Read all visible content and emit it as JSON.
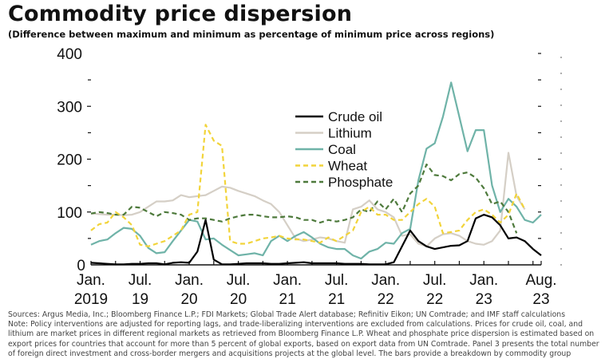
{
  "title": "Commodity price dispersion",
  "subtitle": "(Difference between maximum and minimum as percentage of minimum price across regions)",
  "notes": {
    "sources": "Sources: Argus Media, Inc.; Bloomberg Finance L.P.; FDI Markets; Global Trade Alert database; Refinitiv Eikon; UN Comtrade; and IMF staff calculations",
    "note_lines": [
      "Note: Policy interventions are adjusted for reporting lags, and trade-liberalizing interventions are excluded from calculations. Prices for crude oil, coal, and",
      "lithium are market prices in different regional markets as retrieved from Bloomberg Finance L.P. Wheat and phosphate price dispersion is estimated based on",
      "export prices for countries that account for more than 5 percent of global exports, based on export data from UN Comtrade. Panel 3 presents the total number",
      "of foreign direct investment and cross-border mergers and acquisitions projects at the global level. The bars provide a breakdown by commodity group"
    ]
  },
  "chart_data": {
    "type": "line",
    "x_start": "Jan. 2019",
    "x_unit": "month index from Jan. 2019",
    "xlim": [
      0,
      55
    ],
    "ylim": [
      0,
      400
    ],
    "yticks": [
      0,
      100,
      200,
      300,
      400
    ],
    "xticks": [
      {
        "m": 0,
        "l1": "Jan.",
        "l2": "2019"
      },
      {
        "m": 6,
        "l1": "Jul.",
        "l2": "19"
      },
      {
        "m": 12,
        "l1": "Jan.",
        "l2": "20"
      },
      {
        "m": 18,
        "l1": "Jul.",
        "l2": "20"
      },
      {
        "m": 24,
        "l1": "Jan.",
        "l2": "21"
      },
      {
        "m": 30,
        "l1": "Jul.",
        "l2": "21"
      },
      {
        "m": 36,
        "l1": "Jan.",
        "l2": "22"
      },
      {
        "m": 42,
        "l1": "Jul.",
        "l2": "22"
      },
      {
        "m": 48,
        "l1": "Jan.",
        "l2": "23"
      },
      {
        "m": 55,
        "l1": "Aug.",
        "l2": "23"
      }
    ],
    "legend_position": "center",
    "series": [
      {
        "name": "Crude oil",
        "color": "#000000",
        "dash": "",
        "values": [
          4,
          3,
          2,
          1,
          1,
          2,
          2,
          3,
          3,
          1,
          4,
          5,
          4,
          25,
          85,
          10,
          1,
          1,
          2,
          3,
          3,
          3,
          2,
          2,
          3,
          4,
          5,
          3,
          3,
          3,
          3,
          2,
          2,
          2,
          1,
          1,
          1,
          5,
          35,
          65,
          45,
          35,
          30,
          33,
          36,
          37,
          45,
          88,
          95,
          90,
          75,
          50,
          52,
          45,
          30,
          18
        ]
      },
      {
        "name": "Lithium",
        "color": "#d5cfc6",
        "dash": "",
        "values": [
          97,
          96,
          95,
          95,
          94,
          95,
          100,
          110,
          120,
          120,
          122,
          132,
          128,
          130,
          132,
          140,
          148,
          146,
          140,
          135,
          130,
          122,
          115,
          100,
          75,
          50,
          45,
          48,
          52,
          50,
          45,
          42,
          105,
          110,
          122,
          105,
          100,
          90,
          55,
          58,
          40,
          35,
          50,
          58,
          60,
          55,
          45,
          40,
          38,
          45,
          65,
          212,
          130,
          105
        ]
      },
      {
        "name": "Coal",
        "color": "#6fb3a8",
        "dash": "",
        "values": [
          38,
          45,
          48,
          60,
          70,
          68,
          55,
          32,
          22,
          24,
          45,
          65,
          85,
          82,
          48,
          50,
          38,
          28,
          18,
          20,
          22,
          18,
          45,
          55,
          45,
          55,
          62,
          52,
          40,
          33,
          30,
          30,
          18,
          12,
          25,
          30,
          42,
          40,
          60,
          68,
          160,
          220,
          230,
          280,
          345,
          280,
          215,
          255,
          255,
          150,
          100,
          125,
          110,
          85,
          80,
          95
        ]
      },
      {
        "name": "Wheat",
        "color": "#f2d43a",
        "dash": "6,4",
        "values": [
          65,
          77,
          80,
          100,
          90,
          75,
          38,
          35,
          40,
          45,
          55,
          65,
          95,
          100,
          265,
          235,
          225,
          45,
          40,
          40,
          45,
          50,
          52,
          55,
          50,
          48,
          48,
          45,
          42,
          52,
          45,
          55,
          65,
          100,
          110,
          95,
          95,
          85,
          85,
          100,
          115,
          125,
          110,
          60,
          62,
          65,
          85,
          100,
          105,
          95,
          80,
          95,
          135,
          105
        ]
      },
      {
        "name": "Phosphate",
        "color": "#4e7a3c",
        "dash": "6,4",
        "values": [
          97,
          100,
          98,
          95,
          95,
          110,
          108,
          100,
          92,
          100,
          98,
          95,
          85,
          88,
          88,
          85,
          82,
          88,
          92,
          95,
          95,
          92,
          90,
          90,
          92,
          90,
          85,
          85,
          80,
          85,
          82,
          85,
          90,
          105,
          100,
          120,
          105,
          125,
          100,
          135,
          150,
          190,
          170,
          168,
          160,
          172,
          175,
          165,
          145,
          115,
          120,
          100,
          60
        ]
      }
    ]
  }
}
